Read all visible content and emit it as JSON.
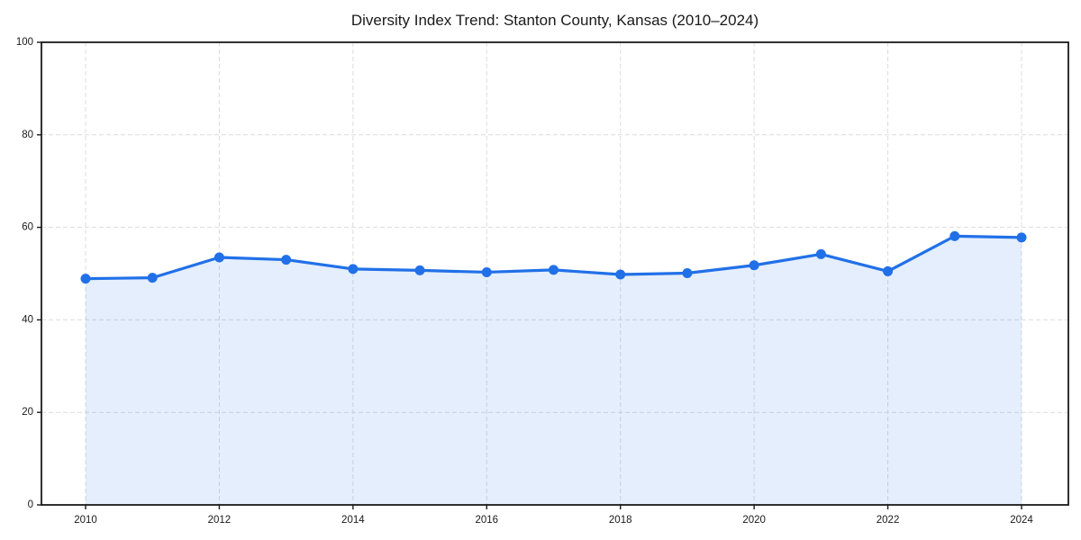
{
  "chart_data": {
    "type": "line",
    "title": "Diversity Index Trend: Stanton County, Kansas (2010–2024)",
    "x": [
      2010,
      2011,
      2012,
      2013,
      2014,
      2015,
      2016,
      2017,
      2018,
      2019,
      2020,
      2021,
      2022,
      2023,
      2024
    ],
    "series": [
      {
        "name": "Diversity Index",
        "values": [
          48.9,
          49.1,
          53.5,
          53.0,
          51.0,
          50.7,
          50.3,
          50.8,
          49.8,
          50.1,
          51.8,
          54.2,
          50.5,
          58.1,
          57.8
        ]
      }
    ],
    "xlabel": "",
    "ylabel": "",
    "ylim": [
      0,
      100
    ],
    "yticks": [
      0,
      20,
      40,
      60,
      80,
      100
    ],
    "xticks": [
      2010,
      2012,
      2014,
      2016,
      2018,
      2020,
      2022,
      2024
    ],
    "grid": "dashed-both-axes",
    "legend": "none",
    "marker": "circle",
    "area_fill": true,
    "colors": {
      "line": "#2170e8",
      "marker": "#2170e8",
      "fill": "rgba(33,112,232,0.12)",
      "grid": "#dcdcdc",
      "axis": "#1a1a1a",
      "background": "#ffffff"
    }
  }
}
